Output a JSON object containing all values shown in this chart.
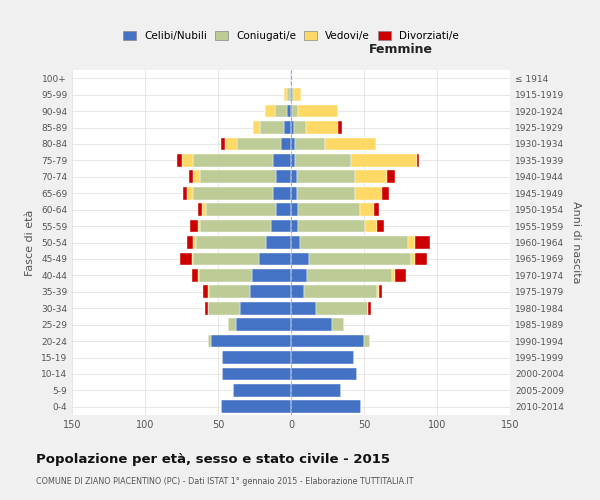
{
  "age_groups": [
    "0-4",
    "5-9",
    "10-14",
    "15-19",
    "20-24",
    "25-29",
    "30-34",
    "35-39",
    "40-44",
    "45-49",
    "50-54",
    "55-59",
    "60-64",
    "65-69",
    "70-74",
    "75-79",
    "80-84",
    "85-89",
    "90-94",
    "95-99",
    "100+"
  ],
  "birth_years": [
    "2010-2014",
    "2005-2009",
    "2000-2004",
    "1995-1999",
    "1990-1994",
    "1985-1989",
    "1980-1984",
    "1975-1979",
    "1970-1974",
    "1965-1969",
    "1960-1964",
    "1955-1959",
    "1950-1954",
    "1945-1949",
    "1940-1944",
    "1935-1939",
    "1930-1934",
    "1925-1929",
    "1920-1924",
    "1915-1919",
    "≤ 1914"
  ],
  "males": {
    "celibi": [
      48,
      40,
      47,
      47,
      55,
      38,
      35,
      28,
      27,
      22,
      17,
      14,
      10,
      12,
      10,
      12,
      7,
      5,
      3,
      1,
      1
    ],
    "coniugati": [
      0,
      0,
      0,
      0,
      2,
      5,
      22,
      28,
      36,
      45,
      48,
      48,
      48,
      55,
      52,
      55,
      30,
      16,
      8,
      2,
      0
    ],
    "vedovi": [
      0,
      0,
      0,
      0,
      0,
      0,
      0,
      1,
      1,
      1,
      2,
      2,
      3,
      4,
      5,
      8,
      8,
      5,
      7,
      2,
      0
    ],
    "divorziati": [
      0,
      0,
      0,
      0,
      0,
      0,
      2,
      3,
      4,
      8,
      4,
      5,
      3,
      3,
      3,
      3,
      3,
      0,
      0,
      0,
      0
    ]
  },
  "females": {
    "nubili": [
      48,
      34,
      45,
      43,
      50,
      28,
      17,
      9,
      11,
      12,
      6,
      5,
      5,
      4,
      4,
      3,
      3,
      2,
      1,
      1,
      0
    ],
    "coniugate": [
      0,
      0,
      0,
      0,
      4,
      8,
      36,
      50,
      58,
      70,
      74,
      46,
      42,
      40,
      40,
      38,
      20,
      8,
      4,
      1,
      0
    ],
    "vedove": [
      0,
      0,
      0,
      0,
      0,
      0,
      0,
      1,
      2,
      3,
      5,
      8,
      10,
      18,
      22,
      45,
      35,
      22,
      27,
      5,
      0
    ],
    "divorziate": [
      0,
      0,
      0,
      0,
      0,
      0,
      2,
      2,
      8,
      8,
      10,
      5,
      3,
      5,
      5,
      2,
      0,
      3,
      0,
      0,
      0
    ]
  },
  "colors": {
    "celibi": "#4472C4",
    "coniugati": "#BDCC96",
    "vedovi": "#FFD966",
    "divorziati": "#CC0000"
  },
  "title": "Popolazione per età, sesso e stato civile - 2015",
  "subtitle": "COMUNE DI ZIANO PIACENTINO (PC) - Dati ISTAT 1° gennaio 2015 - Elaborazione TUTTITALIA.IT",
  "xlabel_right": "Femmine",
  "ylabel_left": "Fasce di età",
  "ylabel_right": "Anni di nascita",
  "xlim": 150,
  "background_color": "#f0f0f0",
  "plot_background": "#ffffff",
  "legend_labels": [
    "Celibi/Nubili",
    "Coniugati/e",
    "Vedovi/e",
    "Divorziati/e"
  ]
}
